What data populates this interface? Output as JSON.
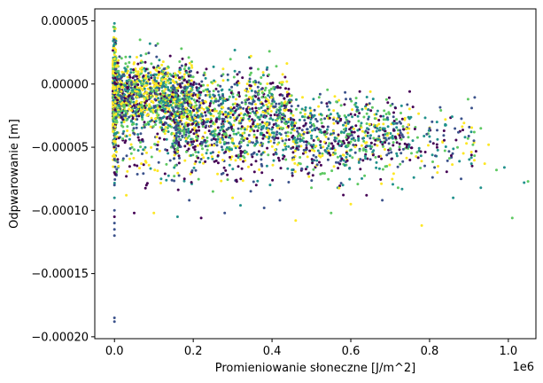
{
  "chart_data": {
    "type": "scatter",
    "title": "",
    "xlabel": "Promieniowanie słoneczne [J/m^2]",
    "ylabel": "Odpwarowanie [m]",
    "x_offset_label": "1e6",
    "xlim": [
      -0.05,
      1.07
    ],
    "ylim": [
      -0.0002015,
      5.95e-05
    ],
    "x_scale_note": "x values in units of 1e6 J/m^2",
    "x_ticks": [
      {
        "value": 0.0,
        "label": "0.0"
      },
      {
        "value": 0.2,
        "label": "0.2"
      },
      {
        "value": 0.4,
        "label": "0.4"
      },
      {
        "value": 0.6,
        "label": "0.6"
      },
      {
        "value": 0.8,
        "label": "0.8"
      },
      {
        "value": 1.0,
        "label": "1.0"
      }
    ],
    "y_ticks": [
      {
        "value": 5e-05,
        "label": "0.00005"
      },
      {
        "value": 0.0,
        "label": "0.00000"
      },
      {
        "value": -5e-05,
        "label": "−0.00005"
      },
      {
        "value": -0.0001,
        "label": "−0.00010"
      },
      {
        "value": -0.00015,
        "label": "−0.00015"
      },
      {
        "value": -0.0002,
        "label": "−0.00020"
      }
    ],
    "grid": false,
    "legend": "none",
    "colormap": [
      "#440154",
      "#3b528b",
      "#21918c",
      "#5ec962",
      "#fde725"
    ],
    "points": [
      {
        "x": 0.0,
        "y": 4.8e-05,
        "c": 2
      },
      {
        "x": 0.0,
        "y": 4.5e-05,
        "c": 3
      },
      {
        "x": 0.0,
        "y": 4.2e-05,
        "c": 2
      },
      {
        "x": 0.0,
        "y": 3.5e-05,
        "c": 1
      },
      {
        "x": 0.0,
        "y": 3.2e-05,
        "c": 2
      },
      {
        "x": 0.0,
        "y": 2.5e-05,
        "c": 3
      },
      {
        "x": 0.0,
        "y": 2e-05,
        "c": 4
      },
      {
        "x": 0.0,
        "y": -6e-05,
        "c": 1
      },
      {
        "x": 0.0,
        "y": -7e-05,
        "c": 0
      },
      {
        "x": 0.0,
        "y": -8e-05,
        "c": 1
      },
      {
        "x": 0.0,
        "y": -9e-05,
        "c": 2
      },
      {
        "x": 0.0,
        "y": -0.0001,
        "c": 1
      },
      {
        "x": 0.0,
        "y": -0.000105,
        "c": 0
      },
      {
        "x": 0.0,
        "y": -0.00011,
        "c": 1
      },
      {
        "x": 0.0,
        "y": -0.000115,
        "c": 1
      },
      {
        "x": 0.0,
        "y": -0.00012,
        "c": 1
      },
      {
        "x": 0.0,
        "y": -0.000185,
        "c": 1
      },
      {
        "x": 0.0,
        "y": -0.000188,
        "c": 1
      },
      {
        "x": 0.065,
        "y": 3.5e-05,
        "c": 3
      },
      {
        "x": 0.09,
        "y": 3.2e-05,
        "c": 2
      },
      {
        "x": 0.17,
        "y": 2.8e-05,
        "c": 3
      },
      {
        "x": 0.11,
        "y": 3.2e-05,
        "c": 3
      },
      {
        "x": 0.12,
        "y": 1.5e-05,
        "c": 4
      },
      {
        "x": 1.04,
        "y": -7.8e-05,
        "c": 2
      },
      {
        "x": 1.05,
        "y": -7.7e-05,
        "c": 3
      },
      {
        "x": 1.01,
        "y": -0.000106,
        "c": 3
      },
      {
        "x": 0.97,
        "y": -6.8e-05,
        "c": 3
      },
      {
        "x": 0.94,
        "y": -6.3e-05,
        "c": 4
      },
      {
        "x": 0.93,
        "y": -8.2e-05,
        "c": 2
      },
      {
        "x": 0.95,
        "y": -4.8e-05,
        "c": 4
      },
      {
        "x": 0.91,
        "y": -4.8e-05,
        "c": 3
      },
      {
        "x": 0.89,
        "y": -4.2e-05,
        "c": 2
      },
      {
        "x": 0.93,
        "y": -3.5e-05,
        "c": 3
      },
      {
        "x": 0.84,
        "y": -3.2e-05,
        "c": 2
      },
      {
        "x": 0.8,
        "y": -3.5e-05,
        "c": 1
      },
      {
        "x": 0.78,
        "y": -0.000112,
        "c": 4
      },
      {
        "x": 0.86,
        "y": -9e-05,
        "c": 2
      },
      {
        "x": 0.68,
        "y": -9.2e-05,
        "c": 1
      },
      {
        "x": 0.64,
        "y": -8.8e-05,
        "c": 0
      },
      {
        "x": 0.55,
        "y": -0.000102,
        "c": 3
      },
      {
        "x": 0.46,
        "y": -0.000108,
        "c": 4
      },
      {
        "x": 0.42,
        "y": -9.2e-05,
        "c": 1
      },
      {
        "x": 0.38,
        "y": -9.8e-05,
        "c": 1
      },
      {
        "x": 0.32,
        "y": -9.6e-05,
        "c": 2
      },
      {
        "x": 0.28,
        "y": -0.000102,
        "c": 1
      },
      {
        "x": 0.22,
        "y": -0.000106,
        "c": 0
      },
      {
        "x": 0.16,
        "y": -0.000105,
        "c": 2
      },
      {
        "x": 0.1,
        "y": -0.000102,
        "c": 4
      },
      {
        "x": 0.05,
        "y": -0.000102,
        "c": 0
      },
      {
        "x": 0.03,
        "y": -8.8e-05,
        "c": 4
      },
      {
        "x": 0.19,
        "y": -9.2e-05,
        "c": 1
      },
      {
        "x": 0.25,
        "y": -8.5e-05,
        "c": 3
      },
      {
        "x": 0.3,
        "y": -9e-05,
        "c": 4
      },
      {
        "x": 0.36,
        "y": -8e-05,
        "c": 0
      },
      {
        "x": 0.5,
        "y": -8.2e-05,
        "c": 3
      },
      {
        "x": 0.58,
        "y": -8e-05,
        "c": 2
      },
      {
        "x": 0.6,
        "y": -9.5e-05,
        "c": 4
      },
      {
        "x": 0.72,
        "y": -8.2e-05,
        "c": 3
      },
      {
        "x": 0.76,
        "y": -7.4e-05,
        "c": 2
      },
      {
        "x": 0.82,
        "y": -7e-05,
        "c": 4
      },
      {
        "x": 0.88,
        "y": -7.5e-05,
        "c": 1
      },
      {
        "x": 0.99,
        "y": -6.6e-05,
        "c": 2
      }
    ],
    "clusters": [
      {
        "x_min": -0.004,
        "x_max": 0.004,
        "y_center": -1e-05,
        "y_spread": 2.2e-05,
        "count": 380,
        "weights": [
          0.1,
          0.15,
          0.2,
          0.2,
          0.35
        ]
      },
      {
        "x_min": 0.0,
        "x_max": 0.2,
        "y_center": -5e-06,
        "y_spread": 1.2e-05,
        "count": 700,
        "weights": [
          0.12,
          0.12,
          0.18,
          0.23,
          0.35
        ]
      },
      {
        "x_min": 0.0,
        "x_max": 0.45,
        "y_center": -1.6e-05,
        "y_spread": 1.4e-05,
        "count": 1100,
        "weights": [
          0.18,
          0.18,
          0.2,
          0.22,
          0.22
        ]
      },
      {
        "x_min": 0.15,
        "x_max": 0.75,
        "y_center": -3.6e-05,
        "y_spread": 1.4e-05,
        "count": 900,
        "weights": [
          0.2,
          0.2,
          0.22,
          0.2,
          0.18
        ]
      },
      {
        "x_min": 0.45,
        "x_max": 0.92,
        "y_center": -4.5e-05,
        "y_spread": 1.5e-05,
        "count": 380,
        "weights": [
          0.18,
          0.2,
          0.26,
          0.2,
          0.16
        ]
      },
      {
        "x_min": 0.0,
        "x_max": 0.6,
        "y_center": -6e-05,
        "y_spread": 1.2e-05,
        "count": 220,
        "weights": [
          0.3,
          0.25,
          0.15,
          0.1,
          0.2
        ]
      }
    ]
  }
}
